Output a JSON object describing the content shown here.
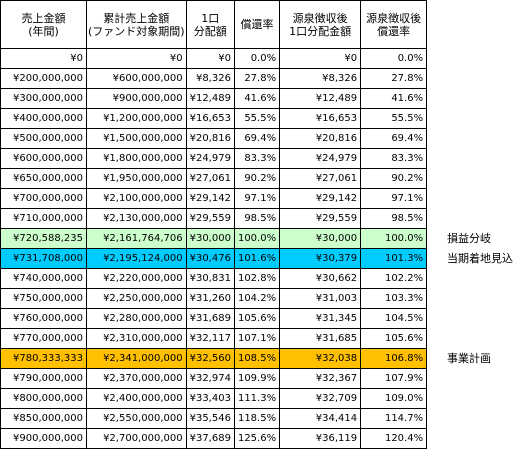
{
  "headers": [
    [
      "売上金額",
      "(年間)"
    ],
    [
      "累計売上金額",
      "(ファンド対象期間)"
    ],
    [
      "1口",
      "分配額"
    ],
    [
      "償還率"
    ],
    [
      "源泉徴収後",
      "1口分配金額"
    ],
    [
      "源泉徴収後",
      "償還率"
    ]
  ],
  "rows": [
    {
      "cells": [
        "¥0",
        "¥0",
        "¥0",
        "0.0%",
        "¥0",
        "0.0%"
      ]
    },
    {
      "cells": [
        "¥200,000,000",
        "¥600,000,000",
        "¥8,326",
        "27.8%",
        "¥8,326",
        "27.8%"
      ]
    },
    {
      "cells": [
        "¥300,000,000",
        "¥900,000,000",
        "¥12,489",
        "41.6%",
        "¥12,489",
        "41.6%"
      ]
    },
    {
      "cells": [
        "¥400,000,000",
        "¥1,200,000,000",
        "¥16,653",
        "55.5%",
        "¥16,653",
        "55.5%"
      ]
    },
    {
      "cells": [
        "¥500,000,000",
        "¥1,500,000,000",
        "¥20,816",
        "69.4%",
        "¥20,816",
        "69.4%"
      ]
    },
    {
      "cells": [
        "¥600,000,000",
        "¥1,800,000,000",
        "¥24,979",
        "83.3%",
        "¥24,979",
        "83.3%"
      ]
    },
    {
      "cells": [
        "¥650,000,000",
        "¥1,950,000,000",
        "¥27,061",
        "90.2%",
        "¥27,061",
        "90.2%"
      ]
    },
    {
      "cells": [
        "¥700,000,000",
        "¥2,100,000,000",
        "¥29,142",
        "97.1%",
        "¥29,142",
        "97.1%"
      ]
    },
    {
      "cells": [
        "¥710,000,000",
        "¥2,130,000,000",
        "¥29,559",
        "98.5%",
        "¥29,559",
        "98.5%"
      ]
    },
    {
      "cells": [
        "¥720,588,235",
        "¥2,161,764,706",
        "¥30,000",
        "100.0%",
        "¥30,000",
        "100.0%"
      ],
      "highlight": "#ccffcc",
      "note": "損益分岐"
    },
    {
      "cells": [
        "¥731,708,000",
        "¥2,195,124,000",
        "¥30,476",
        "101.6%",
        "¥30,379",
        "101.3%"
      ],
      "highlight": "#00ccff",
      "note": "当期着地見込"
    },
    {
      "cells": [
        "¥740,000,000",
        "¥2,220,000,000",
        "¥30,831",
        "102.8%",
        "¥30,662",
        "102.2%"
      ]
    },
    {
      "cells": [
        "¥750,000,000",
        "¥2,250,000,000",
        "¥31,260",
        "104.2%",
        "¥31,003",
        "103.3%"
      ]
    },
    {
      "cells": [
        "¥760,000,000",
        "¥2,280,000,000",
        "¥31,689",
        "105.6%",
        "¥31,345",
        "104.5%"
      ]
    },
    {
      "cells": [
        "¥770,000,000",
        "¥2,310,000,000",
        "¥32,117",
        "107.1%",
        "¥31,685",
        "105.6%"
      ]
    },
    {
      "cells": [
        "¥780,333,333",
        "¥2,341,000,000",
        "¥32,560",
        "108.5%",
        "¥32,038",
        "106.8%"
      ],
      "highlight": "#ffc000",
      "note": "事業計画"
    },
    {
      "cells": [
        "¥790,000,000",
        "¥2,370,000,000",
        "¥32,974",
        "109.9%",
        "¥32,367",
        "107.9%"
      ]
    },
    {
      "cells": [
        "¥800,000,000",
        "¥2,400,000,000",
        "¥33,403",
        "111.3%",
        "¥32,709",
        "109.0%"
      ]
    },
    {
      "cells": [
        "¥850,000,000",
        "¥2,550,000,000",
        "¥35,546",
        "118.5%",
        "¥34,414",
        "114.7%"
      ]
    },
    {
      "cells": [
        "¥900,000,000",
        "¥2,700,000,000",
        "¥37,689",
        "125.6%",
        "¥36,119",
        "120.4%"
      ]
    }
  ]
}
